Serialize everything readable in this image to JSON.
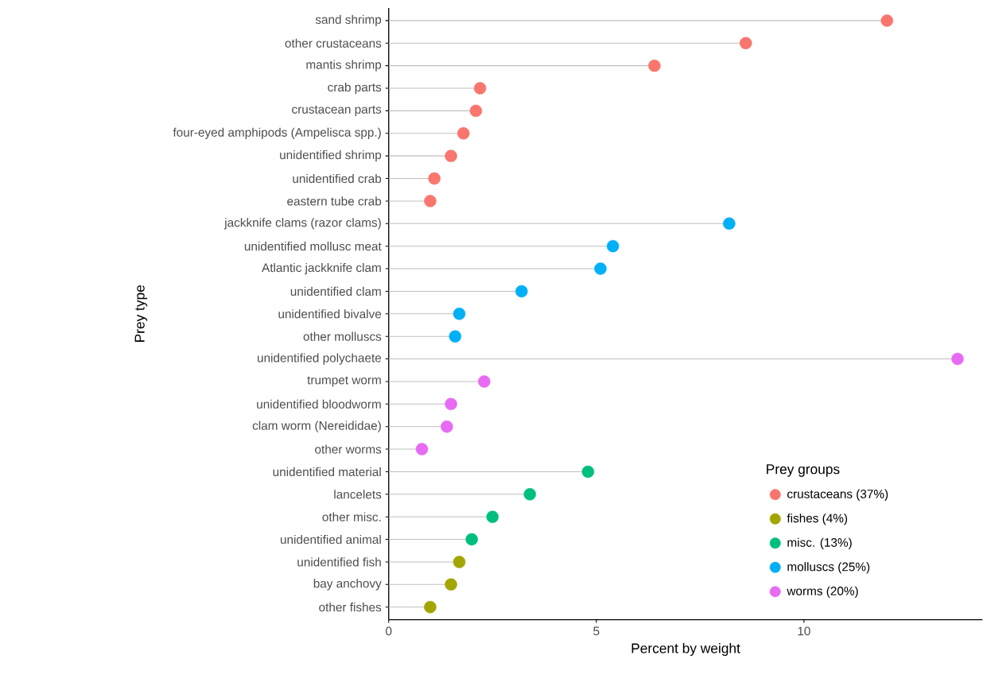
{
  "chart_data": {
    "type": "lollipop",
    "orientation": "horizontal",
    "xlabel": "Percent by weight",
    "ylabel": "Prey type",
    "legend_title": "Prey groups",
    "legend": "bottom right",
    "categories": [
      "sand shrimp",
      "other crustaceans",
      "mantis shrimp",
      "crab parts",
      "crustacean parts",
      "four-eyed amphipods (Ampelisca spp.)",
      "unidentified shrimp",
      "unidentified crab",
      "eastern tube crab",
      "jackknife clams (razor clams)",
      "unidentified mollusc meat",
      "Atlantic jackknife clam",
      "unidentified clam",
      "unidentified bivalve",
      "other molluscs",
      "unidentified polychaete",
      "trumpet worm",
      "unidentified bloodworm",
      "clam worm (Nereididae)",
      "other worms",
      "unidentified material",
      "lancelets",
      "other misc.",
      "unidentified animal",
      "unidentified fish",
      "bay anchovy",
      "other fishes"
    ],
    "series": [
      {
        "name": "crustaceans (37%)",
        "color": "#f8766d",
        "values": [
          12.0,
          8.6,
          6.4,
          2.2,
          2.1,
          1.8,
          1.5,
          1.1,
          1.0,
          null,
          null,
          null,
          null,
          null,
          null,
          null,
          null,
          null,
          null,
          null,
          null,
          null,
          null,
          null,
          null,
          null,
          null
        ]
      },
      {
        "name": "fishes (4%)",
        "color": "#a3a500",
        "values": [
          null,
          null,
          null,
          null,
          null,
          null,
          null,
          null,
          null,
          null,
          null,
          null,
          null,
          null,
          null,
          null,
          null,
          null,
          null,
          null,
          null,
          null,
          null,
          null,
          1.7,
          1.5,
          1.0
        ]
      },
      {
        "name": "misc. (13%)",
        "color": "#00bf7d",
        "values": [
          null,
          null,
          null,
          null,
          null,
          null,
          null,
          null,
          null,
          null,
          null,
          null,
          null,
          null,
          null,
          null,
          null,
          null,
          null,
          null,
          4.8,
          3.4,
          2.5,
          2.0,
          null,
          null,
          null
        ]
      },
      {
        "name": "molluscs (25%)",
        "color": "#00b0f6",
        "values": [
          null,
          null,
          null,
          null,
          null,
          null,
          null,
          null,
          null,
          8.2,
          5.4,
          5.1,
          3.2,
          1.7,
          1.6,
          null,
          null,
          null,
          null,
          null,
          null,
          null,
          null,
          null,
          null,
          null,
          null
        ]
      },
      {
        "name": "worms (20%)",
        "color": "#e76bf3",
        "values": [
          null,
          null,
          null,
          null,
          null,
          null,
          null,
          null,
          null,
          null,
          null,
          null,
          null,
          null,
          null,
          13.7,
          2.3,
          1.5,
          1.4,
          0.8,
          null,
          null,
          null,
          null,
          null,
          null,
          null
        ]
      }
    ],
    "xlim": [
      0,
      14.3
    ],
    "xticks": [
      0,
      5,
      10
    ]
  }
}
